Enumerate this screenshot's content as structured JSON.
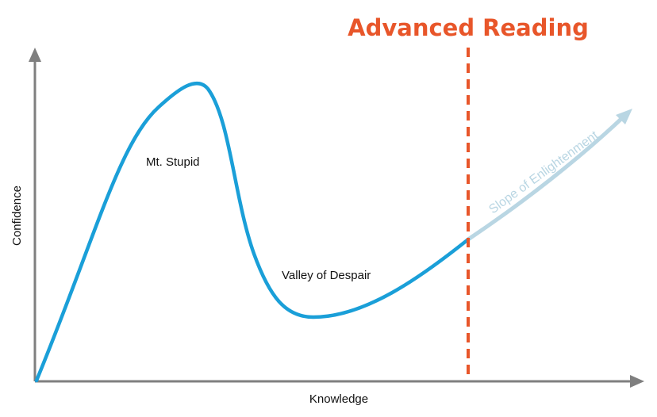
{
  "title": "Advanced Reading",
  "axes": {
    "x_label": "Knowledge",
    "y_label": "Confidence"
  },
  "annotations": {
    "peak": "Mt. Stupid",
    "valley": "Valley of Despair",
    "slope": "Slope of Enlightenment"
  },
  "colors": {
    "curve": "#1a9fd8",
    "slope": "#b9d6e3",
    "marker": "#e8562a",
    "axis": "#7f7f7f",
    "title": "#e8562a"
  }
}
